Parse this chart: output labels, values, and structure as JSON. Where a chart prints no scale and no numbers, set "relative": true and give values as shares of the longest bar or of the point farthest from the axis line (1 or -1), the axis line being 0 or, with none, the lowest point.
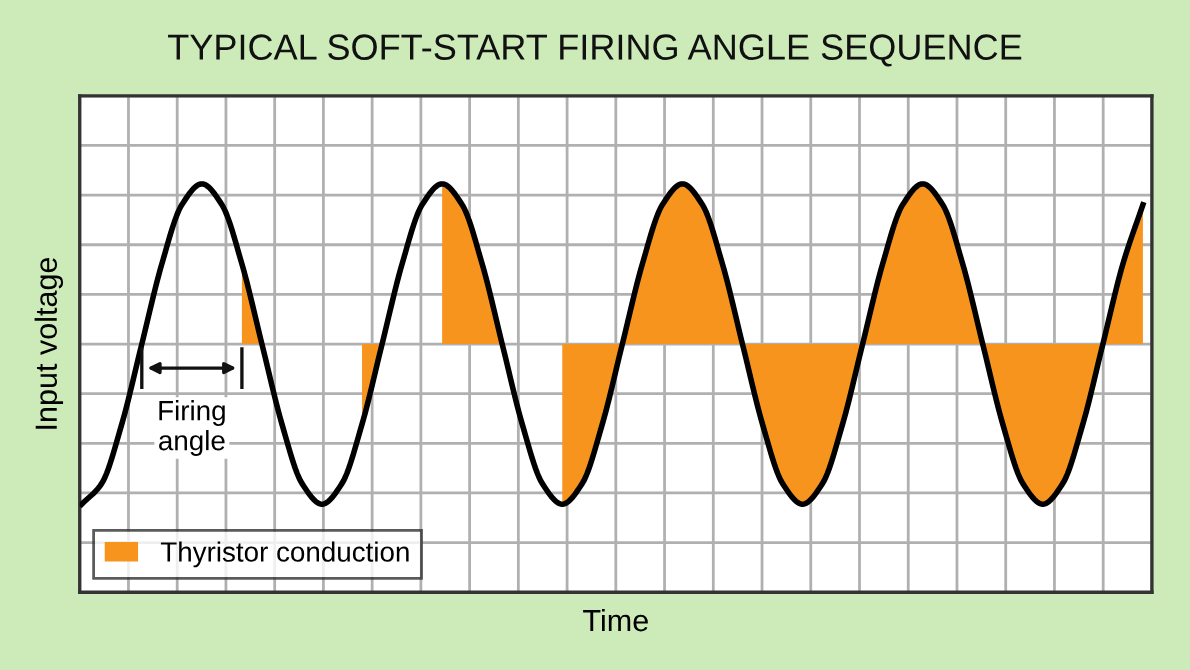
{
  "chart_data": {
    "type": "line",
    "title": "TYPICAL SOFT-START FIRING ANGLE SEQUENCE",
    "xlabel": "Time",
    "ylabel": "Input voltage",
    "relative": true,
    "grid": true,
    "tick_labels": false,
    "legend": "bottom left",
    "marker": "none",
    "line_style": "solid",
    "categories": [
      null,
      null,
      null,
      null,
      null,
      null,
      null,
      null,
      null,
      null,
      null,
      null,
      null,
      null,
      null,
      null,
      null,
      null,
      null,
      null,
      null,
      null,
      null,
      null,
      null,
      null,
      null,
      null,
      null,
      null,
      null,
      null,
      null,
      null,
      null,
      null,
      null,
      null,
      null,
      null,
      null,
      null,
      null,
      null,
      null,
      null,
      null,
      null,
      null,
      null,
      null,
      null,
      null,
      null
    ],
    "series": [
      {
        "type": "line",
        "color": "#000000",
        "values": [
          -1,
          -0.87,
          -0.5,
          0,
          0.5,
          0.87,
          1,
          0.87,
          0.5,
          0,
          -0.5,
          -0.87,
          -1,
          -0.87,
          -0.5,
          0,
          0.5,
          0.87,
          1,
          0.87,
          0.5,
          0,
          -0.5,
          -0.87,
          -1,
          -0.87,
          -0.5,
          0,
          0.5,
          0.87,
          1,
          0.87,
          0.5,
          0,
          -0.5,
          -0.87,
          -1,
          -0.87,
          -0.5,
          0,
          0.5,
          0.87,
          1,
          0.87,
          0.5,
          0,
          -0.5,
          -0.87,
          -1,
          -0.87,
          -0.5,
          0,
          0.5,
          0.87
        ]
      },
      {
        "type": "area",
        "name": "Thyristor conduction",
        "color": "#f7941d",
        "values": [
          null,
          null,
          null,
          null,
          null,
          null,
          null,
          null,
          0.5,
          0,
          null,
          null,
          null,
          null,
          -0.5,
          0,
          null,
          null,
          1,
          0.87,
          0.5,
          0,
          null,
          null,
          -1,
          -0.87,
          -0.5,
          0,
          0.5,
          0.87,
          1,
          0.87,
          0.5,
          0,
          -0.5,
          -0.87,
          -1,
          -0.87,
          -0.5,
          0,
          0.5,
          0.87,
          1,
          0.87,
          0.5,
          0,
          -0.5,
          -0.87,
          -1,
          -0.87,
          -0.5,
          0,
          0.5,
          0.87
        ]
      }
    ],
    "annotations": [
      "Firing\nangle"
    ]
  }
}
